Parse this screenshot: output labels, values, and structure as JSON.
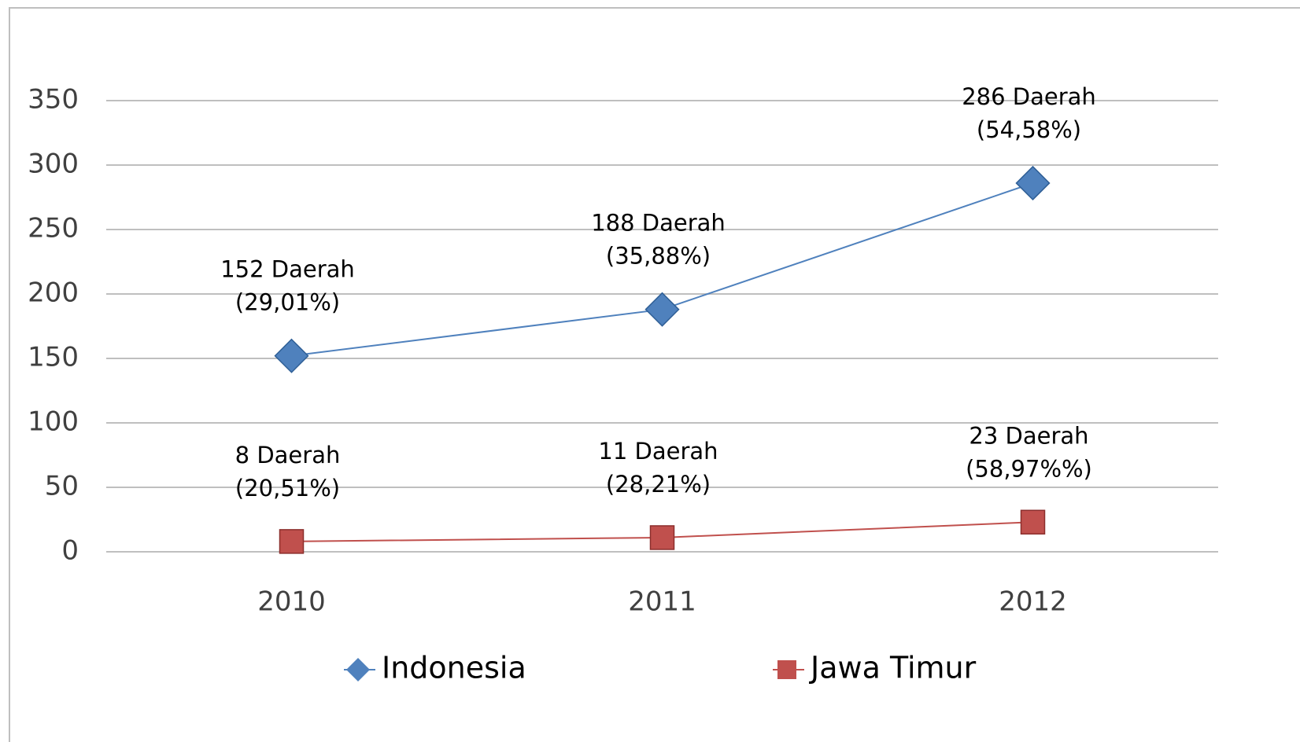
{
  "chart_data": {
    "type": "line",
    "categories": [
      "2010",
      "2011",
      "2012"
    ],
    "series": [
      {
        "name": "Indonesia",
        "color": "#4f81bd",
        "values": [
          152,
          188,
          286
        ],
        "value_labels": [
          "152 Daerah",
          "188 Daerah",
          "286 Daerah"
        ],
        "share_labels": [
          "(29,01%)",
          "(35,88%)",
          "(54,58%)"
        ]
      },
      {
        "name": "Jawa Timur",
        "color": "#c0504d",
        "values": [
          8,
          11,
          23
        ],
        "value_labels": [
          "8 Daerah",
          "11 Daerah",
          "23 Daerah"
        ],
        "share_labels": [
          "(20,51%)",
          "(28,21%)",
          "(58,97%%)"
        ]
      }
    ],
    "ylim": [
      0,
      350
    ],
    "yticks": [
      0,
      50,
      100,
      150,
      200,
      250,
      300,
      350
    ],
    "grid": true,
    "legend": "bottom"
  }
}
